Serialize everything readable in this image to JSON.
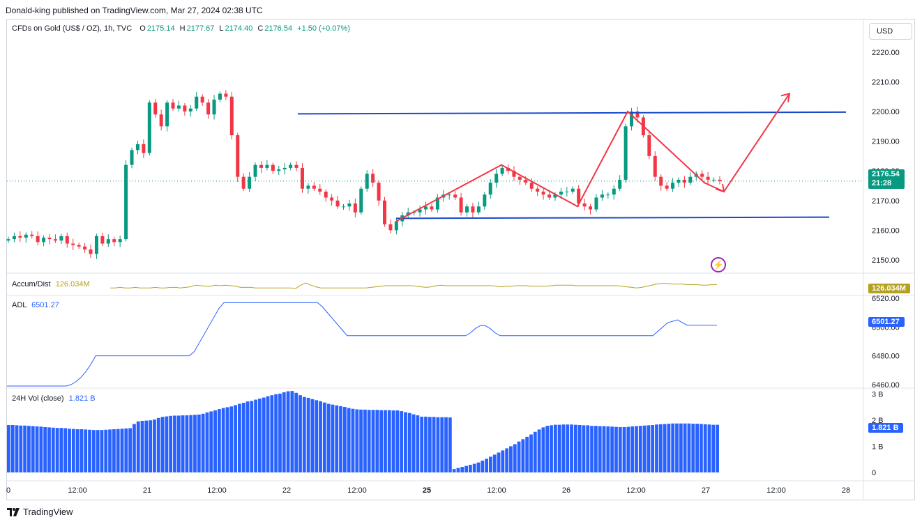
{
  "header": {
    "text": "Donald-king published on TradingView.com, Mar 27, 2024 02:38 UTC"
  },
  "currency_button": "USD",
  "legend": {
    "symbol": "CFDs on Gold (US$ / OZ), 1h, TVC",
    "open_label": "O",
    "open": "2175.14",
    "high_label": "H",
    "high": "2177.67",
    "low_label": "L",
    "low": "2174.40",
    "close_label": "C",
    "close": "2176.54",
    "change": "+1.50 (+0.07%)"
  },
  "price_badge": {
    "value": "2176.54",
    "countdown": "21:28",
    "color": "#089981"
  },
  "indicators": {
    "accum": {
      "name": "Accum/Dist",
      "value": "126.034M",
      "color": "#b5a11f"
    },
    "adl": {
      "name": "ADL",
      "value": "6501.27",
      "color": "#2962ff"
    },
    "vol": {
      "name": "24H Vol (close)",
      "value": "1.821 B",
      "badge": "1.821 B",
      "color": "#2962ff"
    }
  },
  "footer": {
    "brand": "TradingView"
  },
  "colors": {
    "up": "#089981",
    "down": "#f23645",
    "line": "#2962ff",
    "drawing": "#f23645"
  },
  "chart_data": [
    {
      "type": "candlestick",
      "title": "CFDs on Gold (US$ / OZ), 1h, TVC",
      "ylim": [
        2146,
        2227
      ],
      "y_ticks": [
        "2150.00",
        "2160.00",
        "2170.00",
        "2180.00",
        "2190.00",
        "2200.00",
        "2210.00",
        "2220.00"
      ],
      "x_ticks": [
        {
          "label": "0",
          "bold": false
        },
        {
          "label": "12:00",
          "bold": false
        },
        {
          "label": "21",
          "bold": false
        },
        {
          "label": "12:00",
          "bold": false
        },
        {
          "label": "22",
          "bold": false
        },
        {
          "label": "12:00",
          "bold": false
        },
        {
          "label": "25",
          "bold": true
        },
        {
          "label": "12:00",
          "bold": false
        },
        {
          "label": "26",
          "bold": false
        },
        {
          "label": "12:00",
          "bold": false
        },
        {
          "label": "27",
          "bold": false
        },
        {
          "label": "12:00",
          "bold": false
        },
        {
          "label": "28",
          "bold": false
        }
      ],
      "closes": [
        2157,
        2158,
        2157.5,
        2158.5,
        2158,
        2156,
        2157.5,
        2157,
        2156.5,
        2158,
        2155.5,
        2155,
        2154.5,
        2153.5,
        2152,
        2158,
        2155.5,
        2157,
        2156,
        2157,
        2182,
        2187,
        2189,
        2186,
        2203,
        2199,
        2195,
        2203,
        2201,
        2202,
        2200,
        2201,
        2205,
        2203,
        2199,
        2204,
        2206,
        2205,
        2192,
        2178,
        2174,
        2178,
        2182,
        2181,
        2182,
        2180,
        2180.5,
        2181,
        2182,
        2181,
        2174,
        2175,
        2174,
        2173,
        2171,
        2170,
        2168,
        2168,
        2169,
        2166,
        2174,
        2179,
        2176,
        2170,
        2162,
        2160,
        2163,
        2165,
        2166,
        2166,
        2167,
        2168,
        2167,
        2171,
        2172,
        2172,
        2171,
        2166,
        2168,
        2166,
        2168,
        2172,
        2176,
        2179,
        2181,
        2180,
        2178,
        2177,
        2176,
        2174,
        2173,
        2172,
        2171,
        2172,
        2173,
        2173,
        2174,
        2169,
        2168,
        2167,
        2171,
        2172,
        2172,
        2174,
        2177,
        2195,
        2200,
        2198,
        2192,
        2185,
        2178,
        2175,
        2174,
        2176,
        2177,
        2176,
        2178,
        2179,
        2178,
        2177,
        2177,
        2176.54
      ],
      "drawings": {
        "resistance": [
          [
            2199.2,
            2199.8
          ]
        ],
        "support": [
          [
            2164,
            2164.4
          ]
        ],
        "zigzag": [
          2163,
          2182,
          2168,
          2200,
          2176,
          2173,
          2206
        ]
      }
    },
    {
      "type": "line",
      "name": "Accum/Dist",
      "series": [
        {
          "name": "Accum/Dist",
          "values": [
            0.3,
            0.3,
            0.35,
            0.3,
            0.3,
            0.35,
            0.3,
            0.3,
            0.3,
            0.35,
            0.3,
            0.3,
            0.35,
            0.35,
            0.3,
            0.35,
            0.4,
            0.55,
            0.5,
            0.45,
            0.45,
            0.55,
            0.5,
            0.55,
            0.5,
            0.45,
            0.35,
            0.35,
            0.35,
            0.3,
            0.3,
            0.3,
            0.3,
            0.3,
            0.3,
            0.3,
            0.3,
            0.25,
            0.55,
            0.75,
            0.55,
            0.4,
            0.3,
            0.3,
            0.3,
            0.3,
            0.3,
            0.3,
            0.3,
            0.3,
            0.3,
            0.3,
            0.35,
            0.4,
            0.45,
            0.5,
            0.5,
            0.5,
            0.5,
            0.5,
            0.5,
            0.45,
            0.4,
            0.35,
            0.4,
            0.5,
            0.55,
            0.5,
            0.5,
            0.5,
            0.5,
            0.5,
            0.5,
            0.5,
            0.5,
            0.5,
            0.5,
            0.45,
            0.4,
            0.45,
            0.45,
            0.5,
            0.5,
            0.5,
            0.45,
            0.45,
            0.45,
            0.45,
            0.5,
            0.55,
            0.55,
            0.55,
            0.55,
            0.5,
            0.5,
            0.5,
            0.5,
            0.5,
            0.5,
            0.5,
            0.5,
            0.5,
            0.45,
            0.4,
            0.35,
            0.3,
            0.35,
            0.45,
            0.55,
            0.65,
            0.7,
            0.7,
            0.65,
            0.65,
            0.65,
            0.6,
            0.6,
            0.6,
            0.55,
            0.55,
            0.6,
            0.6
          ]
        }
      ]
    },
    {
      "type": "line",
      "name": "ADL",
      "y_ticks": [
        "6460.00",
        "6480.00",
        "6500.00",
        "6520.00"
      ],
      "ylim": [
        6458,
        6522
      ],
      "series": [
        {
          "name": "ADL",
          "values": [
            6459,
            6459,
            6459,
            6459,
            6459,
            6459,
            6459,
            6459,
            6459,
            6459,
            6459,
            6459,
            6459,
            6460,
            6462,
            6465,
            6469,
            6474,
            6480,
            6480,
            6480,
            6480,
            6480,
            6480,
            6480,
            6480,
            6480,
            6480,
            6480,
            6480,
            6480,
            6480,
            6480,
            6480,
            6480,
            6480,
            6480,
            6480,
            6483,
            6489,
            6495,
            6501,
            6507,
            6513,
            6517,
            6517,
            6517,
            6517,
            6517,
            6517,
            6517,
            6517,
            6517,
            6517,
            6517,
            6517,
            6517,
            6517,
            6517,
            6517,
            6517,
            6517,
            6517,
            6517,
            6514,
            6510,
            6506,
            6502,
            6498,
            6494,
            6494,
            6494,
            6494,
            6494,
            6494,
            6494,
            6494,
            6494,
            6494,
            6494,
            6494,
            6494,
            6494,
            6494,
            6494,
            6494,
            6494,
            6494,
            6494,
            6494,
            6494,
            6494,
            6494,
            6494,
            6496,
            6499,
            6501,
            6501,
            6499,
            6496,
            6494,
            6494,
            6494,
            6494,
            6494,
            6494,
            6494,
            6494,
            6494,
            6494,
            6494,
            6494,
            6494,
            6494,
            6494,
            6494,
            6494,
            6494,
            6494,
            6494,
            6494,
            6494,
            6494,
            6494,
            6494,
            6494,
            6494,
            6494,
            6494,
            6494,
            6494,
            6494,
            6497,
            6500,
            6503,
            6504,
            6505,
            6503,
            6501.27,
            6501.27,
            6501.27,
            6501.27,
            6501.27,
            6501.27,
            6501.27
          ]
        }
      ]
    },
    {
      "type": "bar",
      "name": "24H Vol (close)",
      "y_ticks": [
        "0",
        "1 B",
        "2 B",
        "3 B"
      ],
      "ylim": [
        0,
        3.3
      ],
      "values": [
        1.81,
        1.81,
        1.8,
        1.79,
        1.79,
        1.78,
        1.77,
        1.76,
        1.75,
        1.73,
        1.72,
        1.71,
        1.7,
        1.7,
        1.69,
        1.67,
        1.66,
        1.65,
        1.65,
        1.64,
        1.63,
        1.62,
        1.62,
        1.62,
        1.63,
        1.64,
        1.65,
        1.66,
        1.67,
        1.68,
        1.69,
        1.85,
        1.95,
        1.97,
        1.98,
        1.99,
        2.02,
        2.08,
        2.12,
        2.14,
        2.16,
        2.17,
        2.17,
        2.18,
        2.18,
        2.19,
        2.2,
        2.21,
        2.24,
        2.29,
        2.33,
        2.37,
        2.42,
        2.46,
        2.49,
        2.52,
        2.57,
        2.62,
        2.66,
        2.71,
        2.73,
        2.78,
        2.82,
        2.86,
        2.91,
        2.95,
        2.99,
        3.01,
        3.06,
        3.1,
        3.11,
        3.04,
        2.95,
        2.88,
        2.85,
        2.8,
        2.76,
        2.72,
        2.67,
        2.62,
        2.59,
        2.56,
        2.53,
        2.5,
        2.46,
        2.43,
        2.41,
        2.4,
        2.4,
        2.39,
        2.39,
        2.39,
        2.38,
        2.38,
        2.38,
        2.37,
        2.37,
        2.34,
        2.3,
        2.27,
        2.22,
        2.18,
        2.13,
        2.13,
        2.12,
        2.12,
        2.11,
        2.11,
        2.11,
        2.1,
        0.13,
        0.17,
        0.21,
        0.25,
        0.29,
        0.33,
        0.38,
        0.45,
        0.52,
        0.6,
        0.68,
        0.76,
        0.84,
        0.92,
        1.0,
        1.08,
        1.18,
        1.27,
        1.36,
        1.45,
        1.55,
        1.64,
        1.72,
        1.78,
        1.8,
        1.82,
        1.82,
        1.83,
        1.83,
        1.83,
        1.82,
        1.81,
        1.8,
        1.8,
        1.78,
        1.78,
        1.77,
        1.77,
        1.76,
        1.75,
        1.74,
        1.73,
        1.73,
        1.74,
        1.76,
        1.77,
        1.78,
        1.79,
        1.8,
        1.81,
        1.83,
        1.84,
        1.85,
        1.86,
        1.87,
        1.87,
        1.87,
        1.87,
        1.87,
        1.86,
        1.86,
        1.85,
        1.84,
        1.83,
        1.82,
        1.821
      ]
    }
  ]
}
